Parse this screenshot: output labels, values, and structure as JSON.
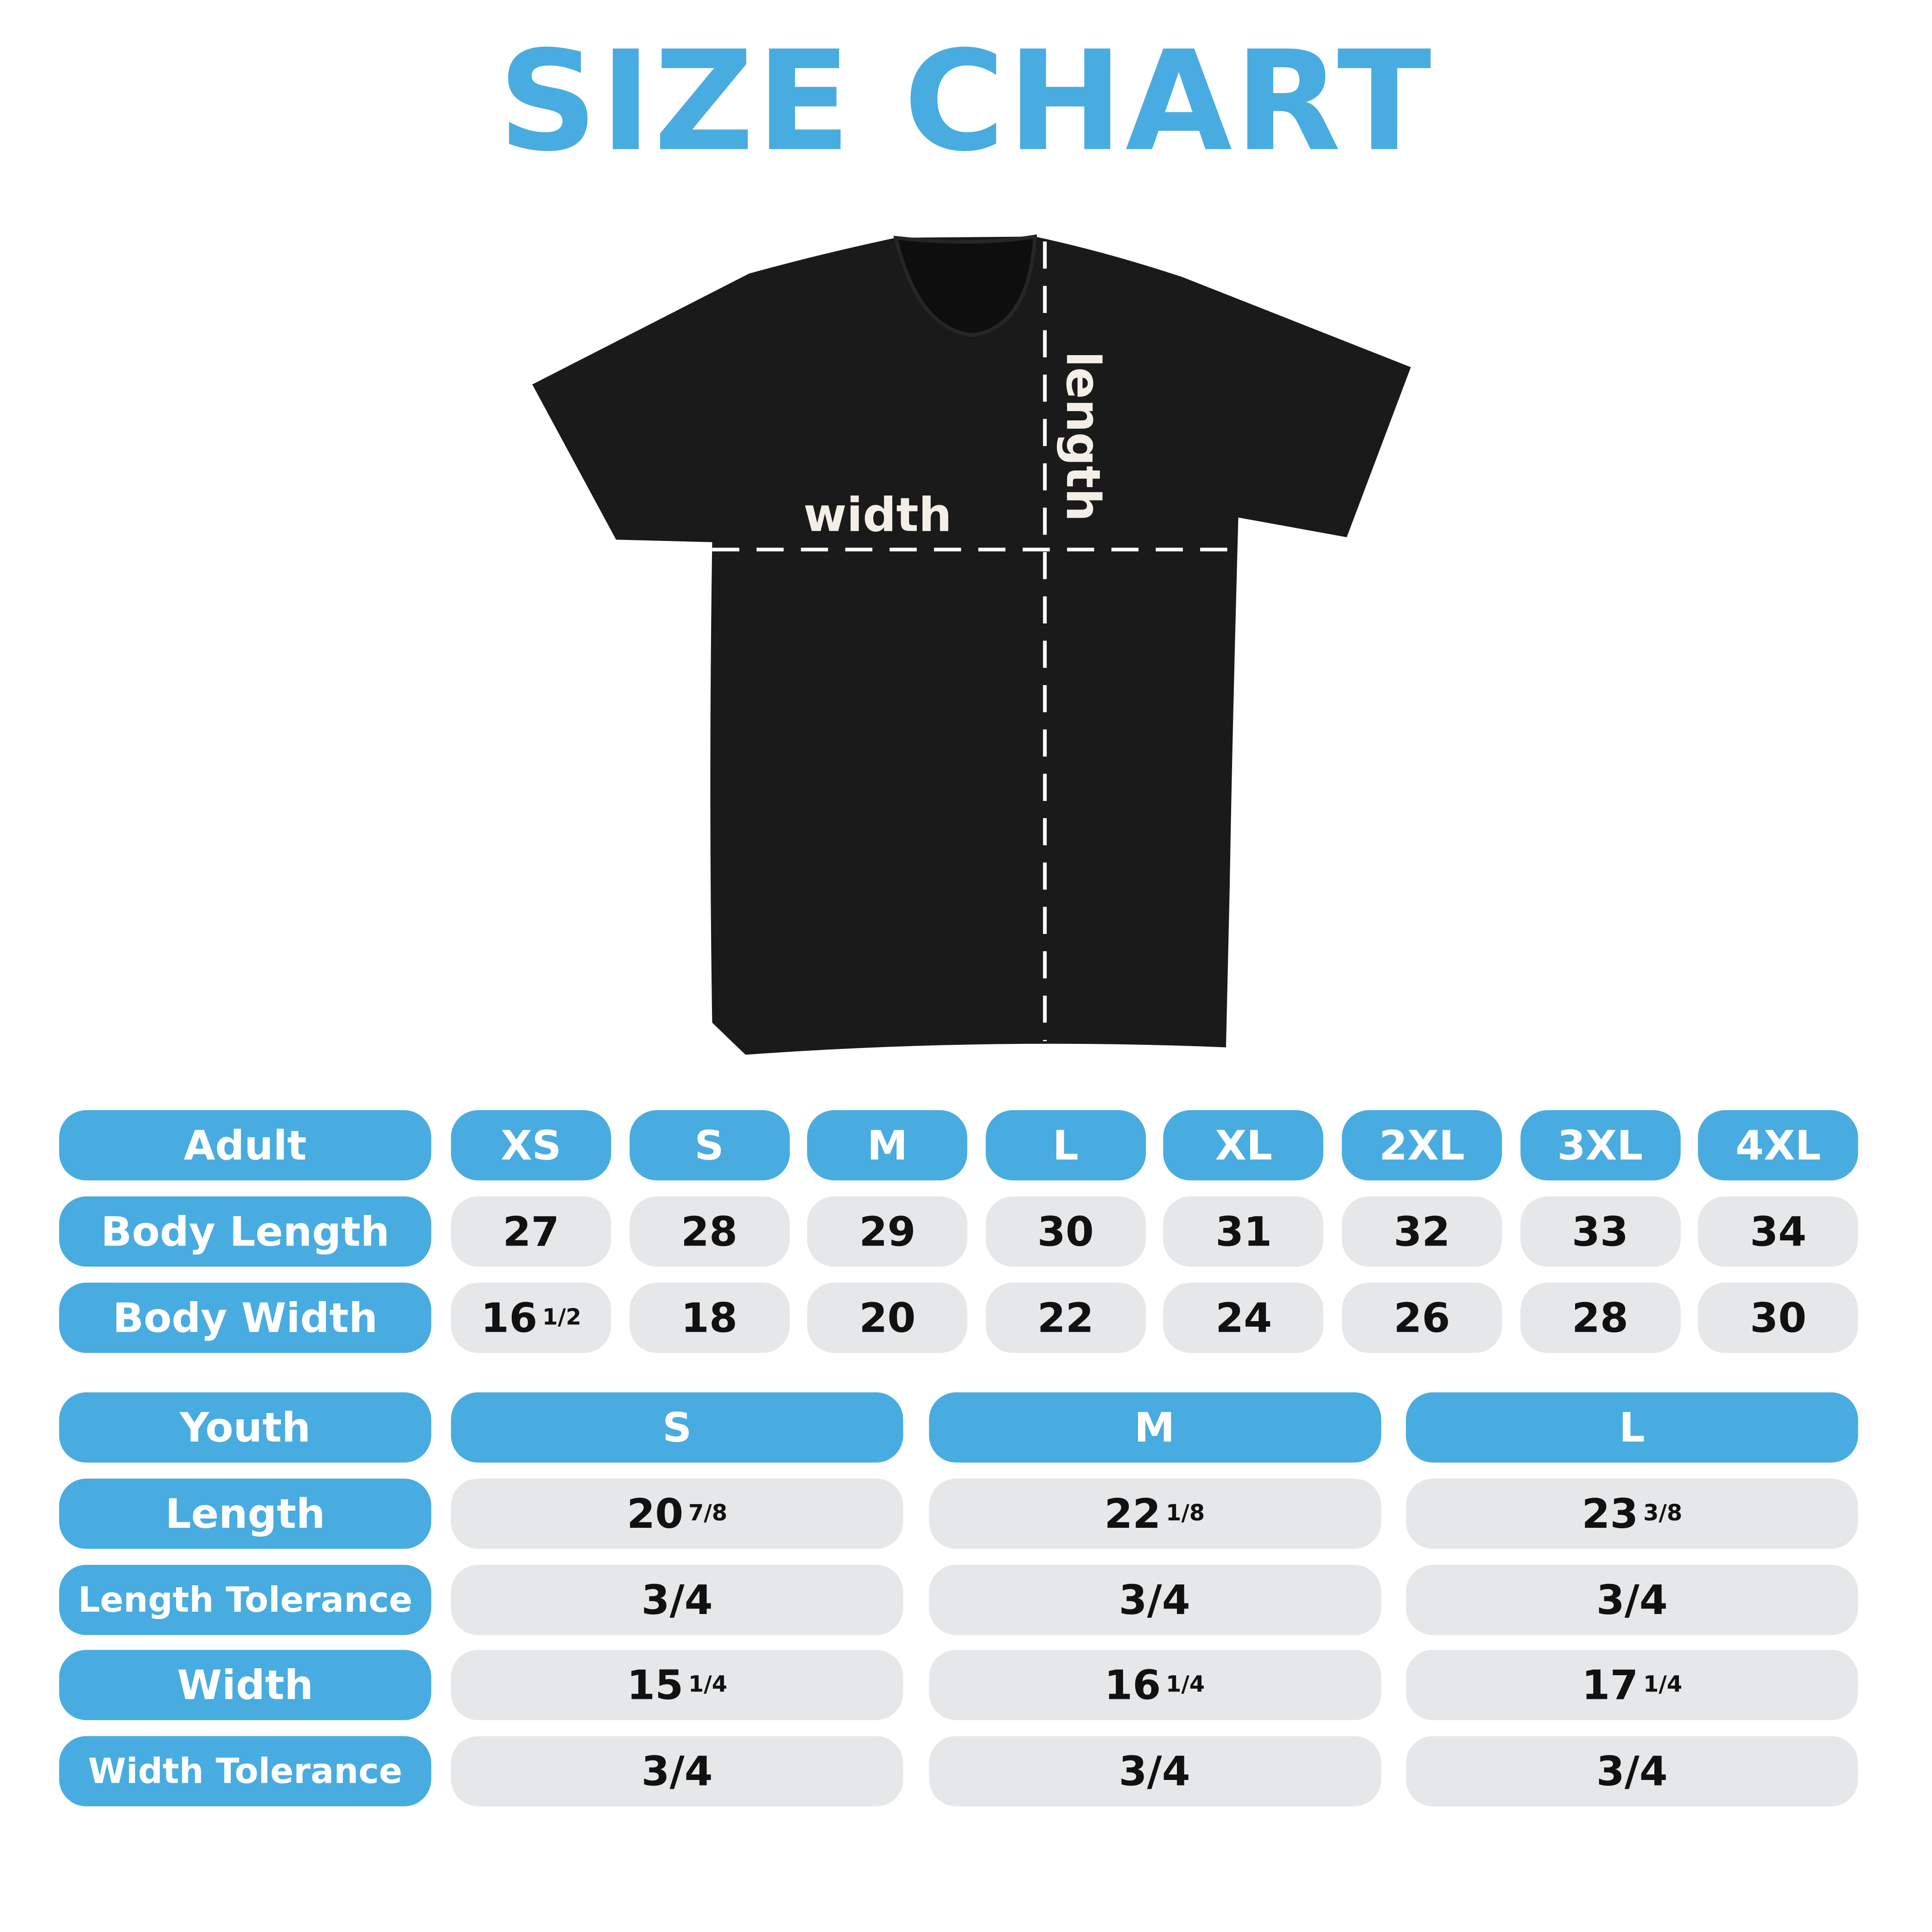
{
  "title": "SIZE CHART",
  "colors": {
    "accent": "#48ACE0",
    "cell": "#E6E7E8",
    "shirt": "#1A1A1A"
  },
  "diagram": {
    "width_label": "width",
    "length_label": "length"
  },
  "adult": {
    "header": "Adult",
    "sizes": [
      "XS",
      "S",
      "M",
      "L",
      "XL",
      "2XL",
      "3XL",
      "4XL"
    ],
    "rows": [
      {
        "label": "Body Length",
        "values": [
          {
            "whole": "27",
            "frac": ""
          },
          {
            "whole": "28",
            "frac": ""
          },
          {
            "whole": "29",
            "frac": ""
          },
          {
            "whole": "30",
            "frac": ""
          },
          {
            "whole": "31",
            "frac": ""
          },
          {
            "whole": "32",
            "frac": ""
          },
          {
            "whole": "33",
            "frac": ""
          },
          {
            "whole": "34",
            "frac": ""
          }
        ]
      },
      {
        "label": "Body Width",
        "values": [
          {
            "whole": "16",
            "frac": "1/2"
          },
          {
            "whole": "18",
            "frac": ""
          },
          {
            "whole": "20",
            "frac": ""
          },
          {
            "whole": "22",
            "frac": ""
          },
          {
            "whole": "24",
            "frac": ""
          },
          {
            "whole": "26",
            "frac": ""
          },
          {
            "whole": "28",
            "frac": ""
          },
          {
            "whole": "30",
            "frac": ""
          }
        ]
      }
    ]
  },
  "youth": {
    "header": "Youth",
    "sizes": [
      "S",
      "M",
      "L"
    ],
    "rows": [
      {
        "label": "Length",
        "values": [
          {
            "whole": "20",
            "frac": "7/8"
          },
          {
            "whole": "22",
            "frac": "1/8"
          },
          {
            "whole": "23",
            "frac": "3/8"
          }
        ]
      },
      {
        "label": "Length Tolerance",
        "values": [
          {
            "whole": "3/4",
            "frac": ""
          },
          {
            "whole": "3/4",
            "frac": ""
          },
          {
            "whole": "3/4",
            "frac": ""
          }
        ]
      },
      {
        "label": "Width",
        "values": [
          {
            "whole": "15",
            "frac": "1/4"
          },
          {
            "whole": "16",
            "frac": "1/4"
          },
          {
            "whole": "17",
            "frac": "1/4"
          }
        ]
      },
      {
        "label": "Width Tolerance",
        "values": [
          {
            "whole": "3/4",
            "frac": ""
          },
          {
            "whole": "3/4",
            "frac": ""
          },
          {
            "whole": "3/4",
            "frac": ""
          }
        ]
      }
    ]
  }
}
